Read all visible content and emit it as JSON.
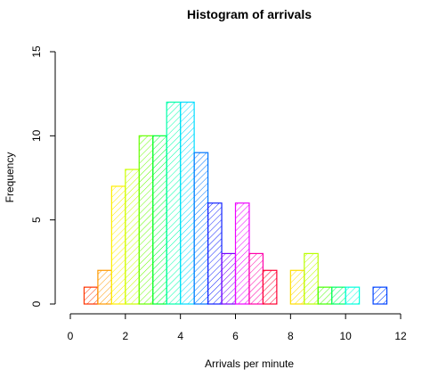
{
  "chart_data": {
    "type": "bar",
    "title": "Histogram of arrivals",
    "xlabel": "Arrivals per minute",
    "ylabel": "Frequency",
    "xlim": [
      0,
      12
    ],
    "ylim": [
      0,
      15
    ],
    "x_ticks": [
      0,
      2,
      4,
      6,
      8,
      10,
      12
    ],
    "y_ticks": [
      0,
      5,
      10,
      15
    ],
    "bin_width": 0.5,
    "bins": [
      {
        "start": 0.5,
        "count": 1,
        "color": "#ff3300"
      },
      {
        "start": 1.0,
        "count": 2,
        "color": "#ff9900"
      },
      {
        "start": 1.5,
        "count": 7,
        "color": "#ffee00"
      },
      {
        "start": 2.0,
        "count": 8,
        "color": "#ccff00"
      },
      {
        "start": 2.5,
        "count": 10,
        "color": "#66ff00"
      },
      {
        "start": 3.0,
        "count": 10,
        "color": "#00ff33"
      },
      {
        "start": 3.5,
        "count": 12,
        "color": "#00ffaa"
      },
      {
        "start": 4.0,
        "count": 12,
        "color": "#00ddff"
      },
      {
        "start": 4.5,
        "count": 9,
        "color": "#0077ff"
      },
      {
        "start": 5.0,
        "count": 6,
        "color": "#1122ff"
      },
      {
        "start": 5.5,
        "count": 3,
        "color": "#7700ff"
      },
      {
        "start": 6.0,
        "count": 6,
        "color": "#ee00ff"
      },
      {
        "start": 6.5,
        "count": 3,
        "color": "#ff00aa"
      },
      {
        "start": 7.0,
        "count": 2,
        "color": "#ff0033"
      },
      {
        "start": 7.5,
        "count": 0,
        "color": "#ff5500"
      },
      {
        "start": 8.0,
        "count": 2,
        "color": "#ffdd00"
      },
      {
        "start": 8.5,
        "count": 3,
        "color": "#bbff00"
      },
      {
        "start": 9.0,
        "count": 1,
        "color": "#44ff00"
      },
      {
        "start": 9.5,
        "count": 1,
        "color": "#00ff66"
      },
      {
        "start": 10.0,
        "count": 1,
        "color": "#00ffdd"
      },
      {
        "start": 10.5,
        "count": 0,
        "color": "#00aaff"
      },
      {
        "start": 11.0,
        "count": 1,
        "color": "#0044ff"
      }
    ]
  }
}
